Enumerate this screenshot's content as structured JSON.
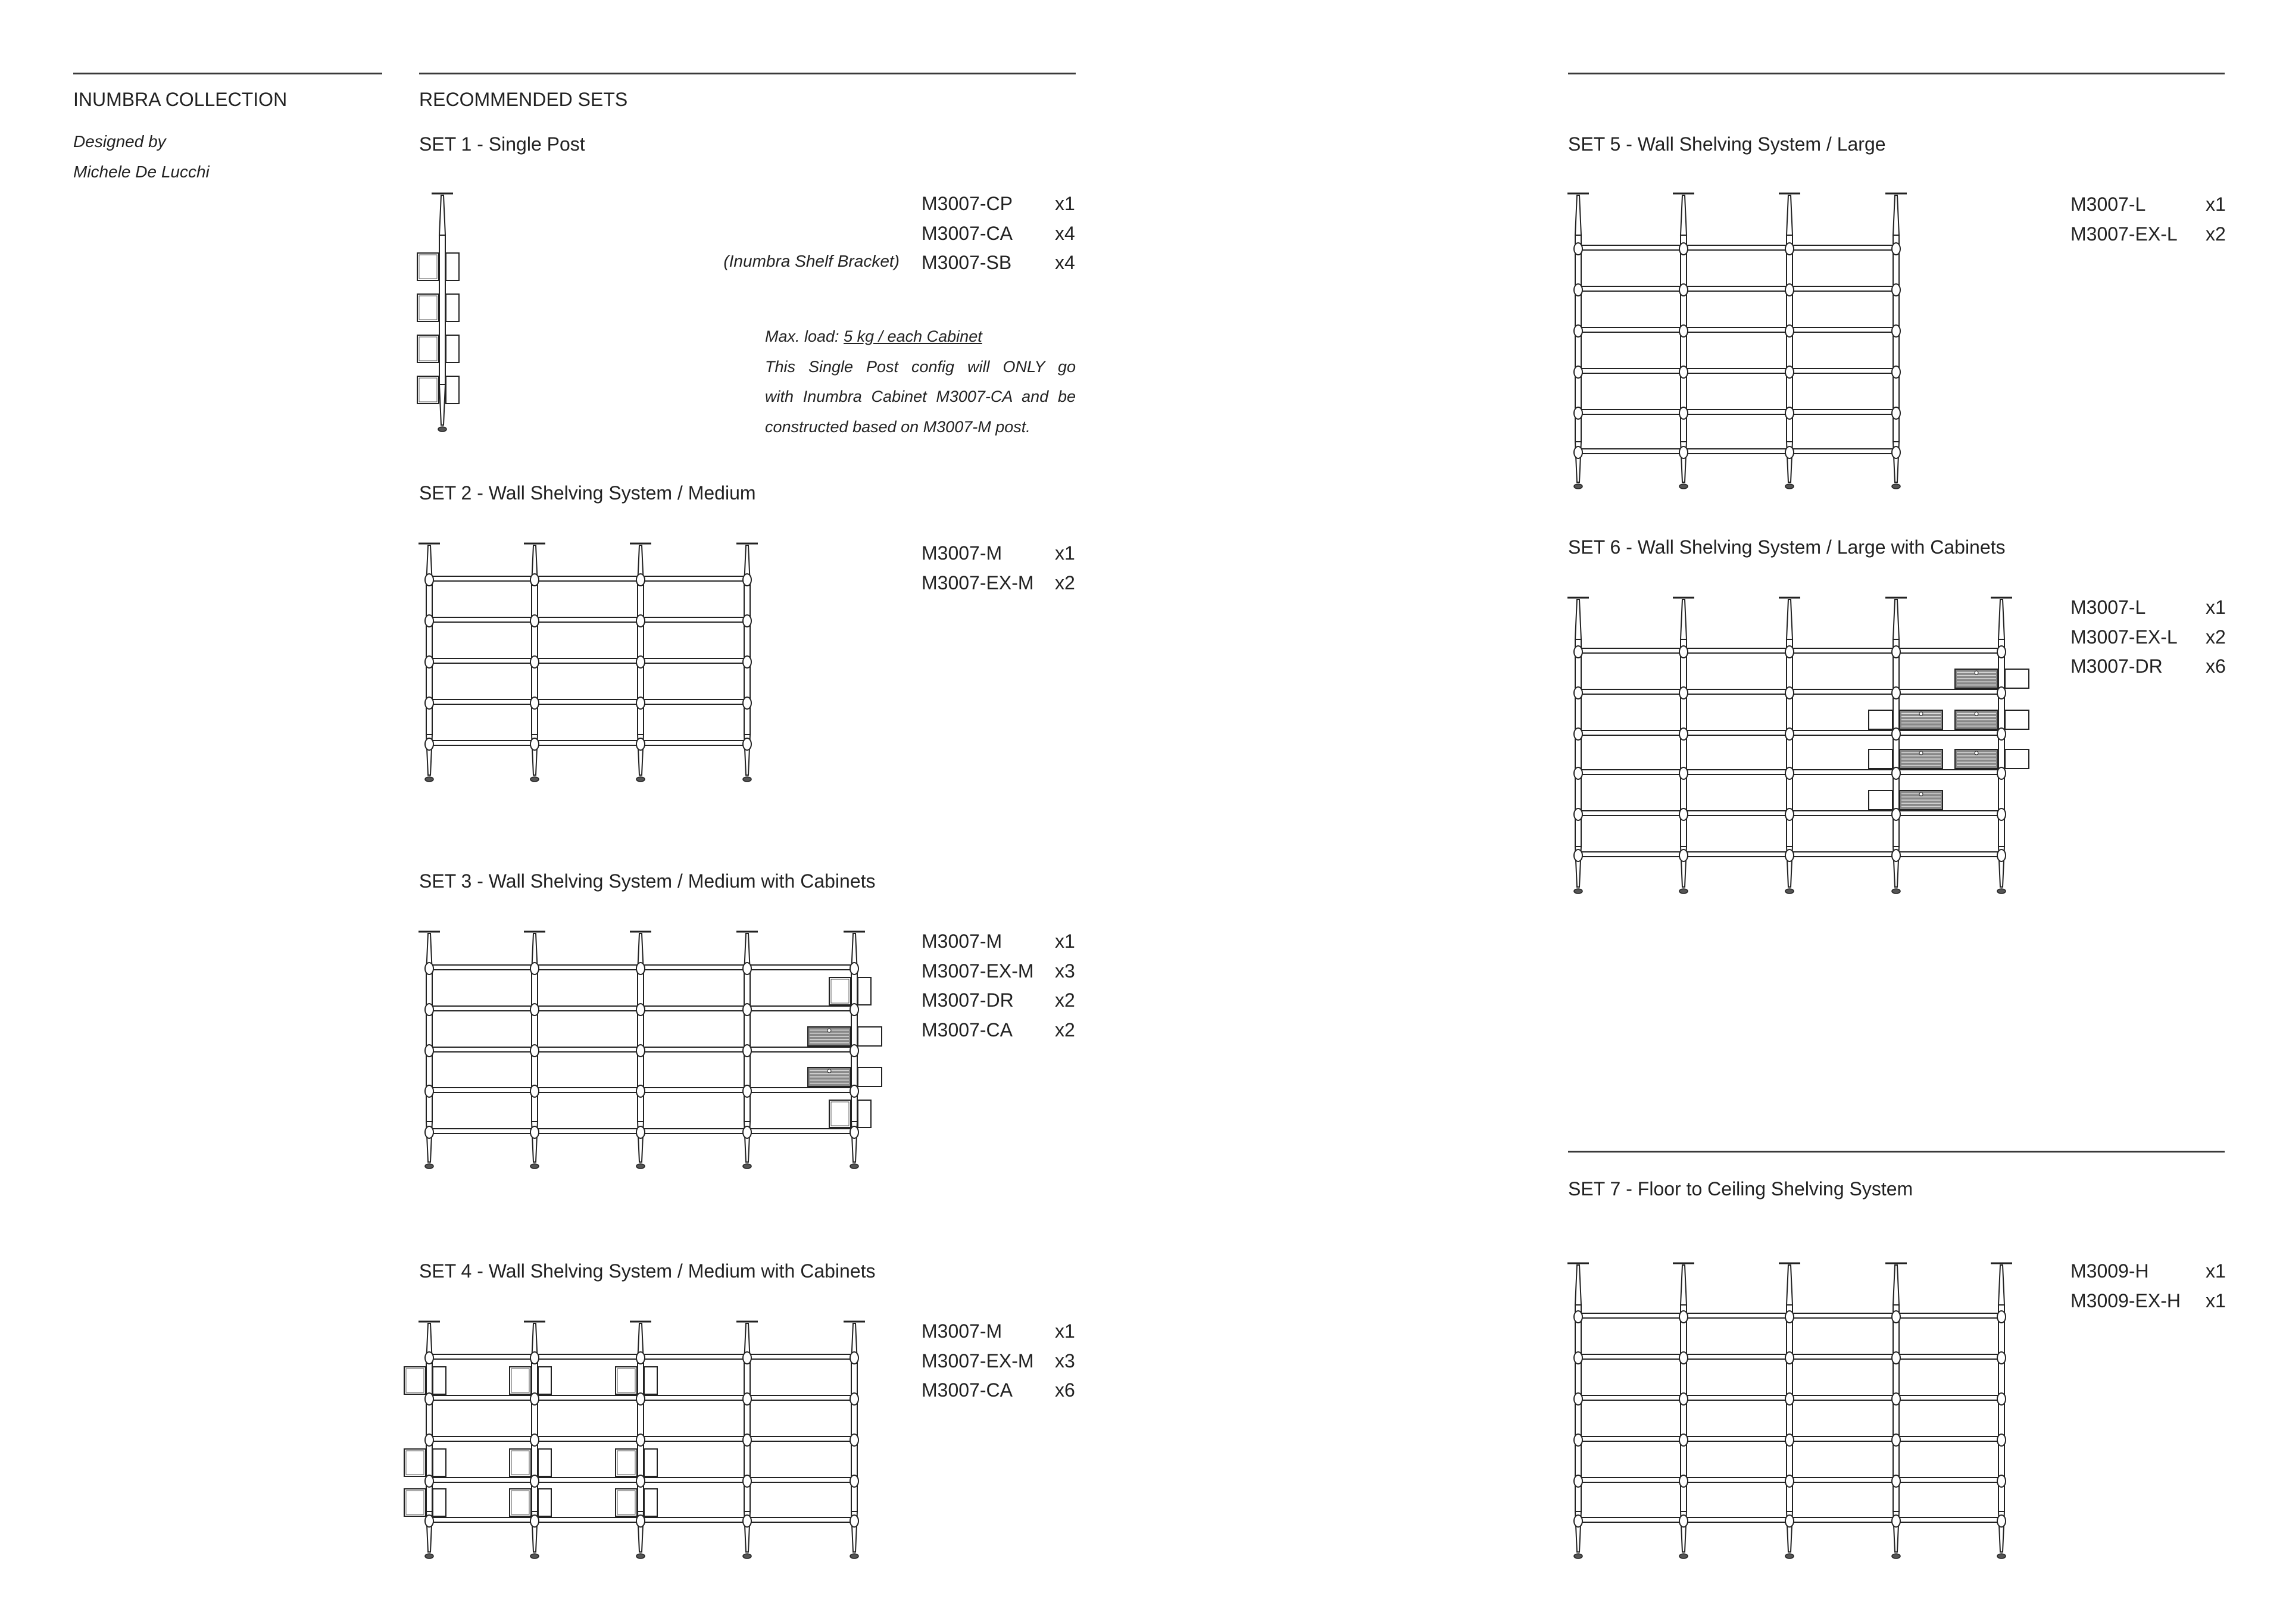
{
  "collection": {
    "title": "INUMBRA COLLECTION",
    "designed_by_label": "Designed by",
    "designer": "Michele De Lucchi"
  },
  "section_title": "RECOMMENDED SETS",
  "sets": [
    {
      "title": "SET 1 - Single Post",
      "note_label": "(Inumbra Shelf Bracket)",
      "parts": [
        {
          "code": "M3007-CP",
          "qty": "x1"
        },
        {
          "code": "M3007-CA",
          "qty": "x4"
        },
        {
          "code": "M3007-SB",
          "qty": "x4"
        }
      ],
      "note": {
        "load_prefix": "Max. load: ",
        "load_value": "5 kg / each Cabinet",
        "lines": [
          "This Single Post config will ONLY go",
          "with Inumbra Cabinet M3007-CA and be",
          "constructed based on M3007-M post."
        ]
      }
    },
    {
      "title": "SET 2 - Wall Shelving System / Medium",
      "parts": [
        {
          "code": "M3007-M",
          "qty": "x1"
        },
        {
          "code": "M3007-EX-M",
          "qty": "x2"
        }
      ]
    },
    {
      "title": "SET 3 - Wall Shelving System / Medium with Cabinets",
      "parts": [
        {
          "code": "M3007-M",
          "qty": "x1"
        },
        {
          "code": "M3007-EX-M",
          "qty": "x3"
        },
        {
          "code": "M3007-DR",
          "qty": "x2"
        },
        {
          "code": "M3007-CA",
          "qty": "x2"
        }
      ]
    },
    {
      "title": "SET 4 - Wall Shelving System / Medium with Cabinets",
      "parts": [
        {
          "code": "M3007-M",
          "qty": "x1"
        },
        {
          "code": "M3007-EX-M",
          "qty": "x3"
        },
        {
          "code": "M3007-CA",
          "qty": "x6"
        }
      ]
    },
    {
      "title": "SET 5 - Wall Shelving System / Large",
      "parts": [
        {
          "code": "M3007-L",
          "qty": "x1"
        },
        {
          "code": "M3007-EX-L",
          "qty": "x2"
        }
      ]
    },
    {
      "title": "SET 6 - Wall Shelving System / Large with Cabinets",
      "parts": [
        {
          "code": "M3007-L",
          "qty": "x1"
        },
        {
          "code": "M3007-EX-L",
          "qty": "x2"
        },
        {
          "code": "M3007-DR",
          "qty": "x6"
        }
      ]
    },
    {
      "title": "SET 7 - Floor to Ceiling Shelving System",
      "parts": [
        {
          "code": "M3009-H",
          "qty": "x1"
        },
        {
          "code": "M3009-EX-H",
          "qty": "x1"
        }
      ]
    }
  ]
}
